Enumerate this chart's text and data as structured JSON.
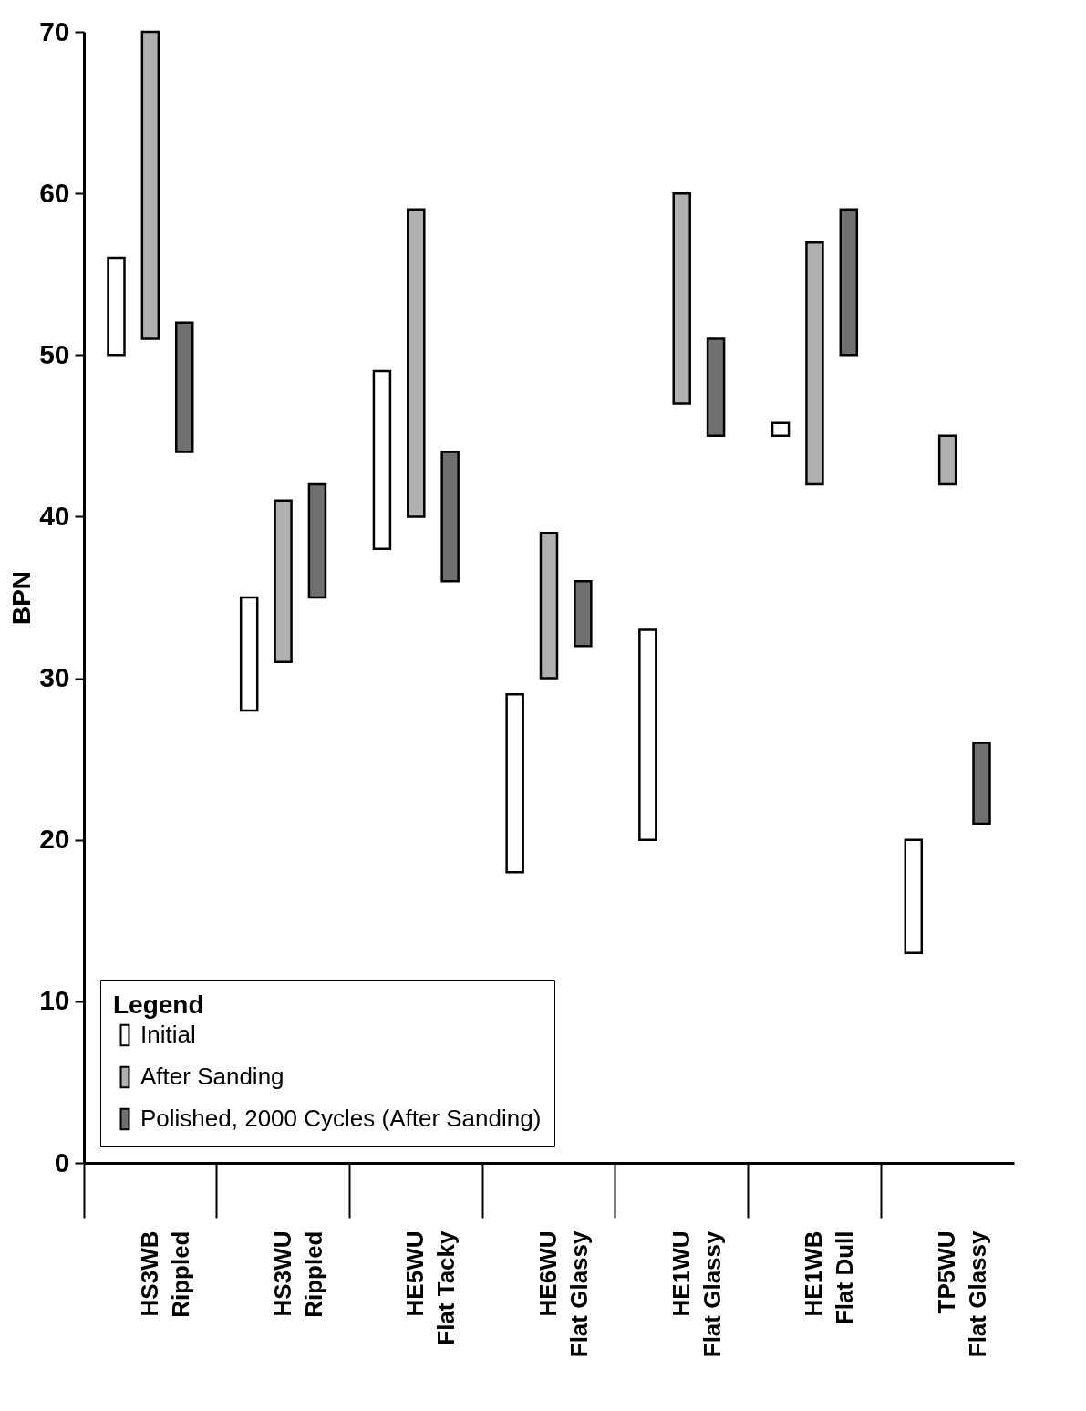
{
  "chart_data": {
    "type": "bar",
    "ylabel": "BPN",
    "legend_title": "Legend",
    "legend": "bottom left",
    "grid": false,
    "categories": [
      "HS3WB\nRippled",
      "HS3WU\nRippled",
      "HE5WU\nFlat  Tacky",
      "HE6WU\nFlat Glassy",
      "HE1WU\nFlat Glassy",
      "HE1WB\nFlat Dull",
      "TP5WU\nFlat Glassy"
    ],
    "ylim": [
      0,
      70
    ],
    "yticks": [
      0,
      10,
      20,
      30,
      40,
      50,
      60,
      70
    ],
    "series": [
      {
        "name": "Initial",
        "color": "#ffffff",
        "base": [
          50,
          28,
          38,
          18,
          20,
          45,
          13
        ],
        "values": [
          6,
          7,
          11,
          11,
          13,
          0.8,
          7
        ]
      },
      {
        "name": "After Sanding",
        "color": "#b0b0b0",
        "base": [
          51,
          31,
          40,
          30,
          47,
          42,
          42
        ],
        "values": [
          19,
          10,
          19,
          9,
          13,
          15,
          3
        ]
      },
      {
        "name": "Polished, 2000 Cycles (After Sanding)",
        "color": "#707070",
        "base": [
          44,
          35,
          36,
          32,
          45,
          50,
          21
        ],
        "values": [
          8,
          7,
          8,
          4,
          6,
          9,
          5
        ]
      }
    ]
  }
}
